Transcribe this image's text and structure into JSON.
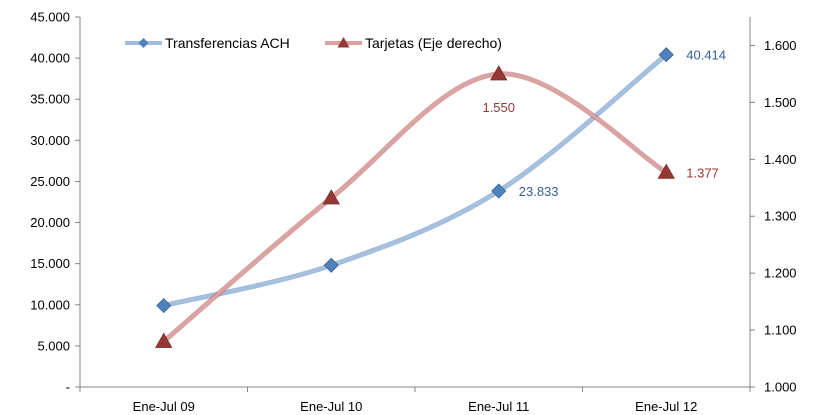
{
  "chart_data": {
    "type": "line",
    "title": "",
    "categories": [
      "Ene-Jul 09",
      "Ene-Jul 10",
      "Ene-Jul 11",
      "Ene-Jul 12"
    ],
    "y_left": {
      "ylim": [
        0,
        45000
      ],
      "ticks": [
        {
          "value": 0,
          "label": "-"
        },
        {
          "value": 5000,
          "label": "5.000"
        },
        {
          "value": 10000,
          "label": "10.000"
        },
        {
          "value": 15000,
          "label": "15.000"
        },
        {
          "value": 20000,
          "label": "20.000"
        },
        {
          "value": 25000,
          "label": "25.000"
        },
        {
          "value": 30000,
          "label": "30.000"
        },
        {
          "value": 35000,
          "label": "35.000"
        },
        {
          "value": 40000,
          "label": "40.000"
        },
        {
          "value": 45000,
          "label": "45.000"
        }
      ]
    },
    "y_right": {
      "ylim": [
        1000,
        1650
      ],
      "ticks": [
        {
          "value": 1000,
          "label": "1.000"
        },
        {
          "value": 1100,
          "label": "1.100"
        },
        {
          "value": 1200,
          "label": "1.200"
        },
        {
          "value": 1300,
          "label": "1.300"
        },
        {
          "value": 1400,
          "label": "1.400"
        },
        {
          "value": 1500,
          "label": "1.500"
        },
        {
          "value": 1600,
          "label": "1.600"
        }
      ]
    },
    "series": [
      {
        "name": "Transferencias ACH",
        "axis": "left",
        "color": "#4F81BD",
        "marker": "diamond",
        "values": [
          9900,
          14800,
          23833,
          40414
        ],
        "labels": [
          "",
          "",
          "23.833",
          "40.414"
        ]
      },
      {
        "name": "Tarjetas (Eje derecho)",
        "axis": "right",
        "color": "#C0504D",
        "marker": "triangle",
        "values": [
          1080,
          1332,
          1550,
          1377
        ],
        "labels": [
          "",
          "",
          "1.550",
          "1.377"
        ]
      }
    ],
    "legend_position": "top-left",
    "grid": false
  }
}
